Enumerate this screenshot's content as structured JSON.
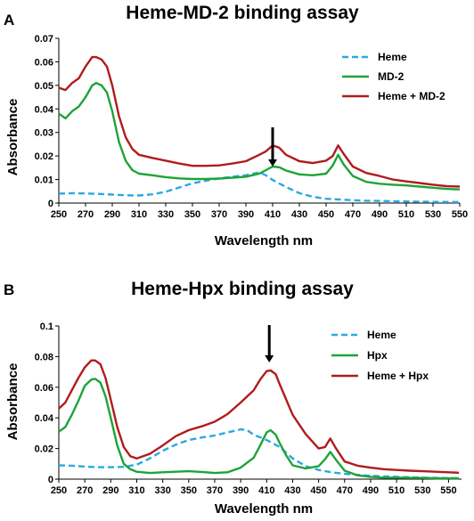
{
  "chart_data": [
    {
      "type": "line",
      "panel": "A",
      "title": "Heme-MD-2 binding assay",
      "xlabel": "Wavelength nm",
      "ylabel": "Absorbance",
      "xlim": [
        250,
        550
      ],
      "ylim": [
        0,
        0.07
      ],
      "xticks": [
        "250",
        "270",
        "290",
        "310",
        "330",
        "350",
        "370",
        "390",
        "410",
        "430",
        "450",
        "470",
        "490",
        "510",
        "530",
        "550"
      ],
      "yticks": [
        "0",
        "0.01",
        "0.02",
        "0.03",
        "0.04",
        "0.05",
        "0.06",
        "0.07"
      ],
      "legend_position": "top-right",
      "annotation": "downward arrow at 410 nm",
      "arrow_x": 410,
      "series": [
        {
          "name": "Heme",
          "color": "#2aa9e0",
          "dash": true,
          "points": [
            [
              250,
              0.004
            ],
            [
              260,
              0.0042
            ],
            [
              270,
              0.0041
            ],
            [
              280,
              0.0039
            ],
            [
              290,
              0.0036
            ],
            [
              300,
              0.0033
            ],
            [
              310,
              0.0032
            ],
            [
              320,
              0.0037
            ],
            [
              330,
              0.0048
            ],
            [
              340,
              0.0066
            ],
            [
              350,
              0.0084
            ],
            [
              360,
              0.0095
            ],
            [
              370,
              0.0105
            ],
            [
              380,
              0.0112
            ],
            [
              390,
              0.0118
            ],
            [
              395,
              0.0125
            ],
            [
              400,
              0.013
            ],
            [
              405,
              0.0118
            ],
            [
              410,
              0.0098
            ],
            [
              420,
              0.0068
            ],
            [
              430,
              0.0042
            ],
            [
              440,
              0.0027
            ],
            [
              450,
              0.0018
            ],
            [
              460,
              0.0015
            ],
            [
              470,
              0.0012
            ],
            [
              480,
              0.001
            ],
            [
              490,
              0.0009
            ],
            [
              500,
              0.0008
            ],
            [
              510,
              0.0007
            ],
            [
              520,
              0.0006
            ],
            [
              530,
              0.0005
            ],
            [
              540,
              0.0005
            ],
            [
              550,
              0.0004
            ]
          ]
        },
        {
          "name": "MD-2",
          "color": "#1ea33a",
          "dash": false,
          "points": [
            [
              250,
              0.038
            ],
            [
              255,
              0.036
            ],
            [
              260,
              0.039
            ],
            [
              265,
              0.041
            ],
            [
              270,
              0.045
            ],
            [
              275,
              0.05
            ],
            [
              278,
              0.051
            ],
            [
              282,
              0.05
            ],
            [
              286,
              0.047
            ],
            [
              290,
              0.039
            ],
            [
              295,
              0.026
            ],
            [
              300,
              0.018
            ],
            [
              305,
              0.014
            ],
            [
              310,
              0.0125
            ],
            [
              320,
              0.0118
            ],
            [
              330,
              0.011
            ],
            [
              340,
              0.0105
            ],
            [
              350,
              0.0102
            ],
            [
              360,
              0.0102
            ],
            [
              370,
              0.0104
            ],
            [
              380,
              0.0108
            ],
            [
              390,
              0.0112
            ],
            [
              400,
              0.0125
            ],
            [
              405,
              0.014
            ],
            [
              410,
              0.0155
            ],
            [
              415,
              0.0152
            ],
            [
              420,
              0.0138
            ],
            [
              430,
              0.0122
            ],
            [
              440,
              0.0118
            ],
            [
              450,
              0.0125
            ],
            [
              455,
              0.016
            ],
            [
              459,
              0.0205
            ],
            [
              463,
              0.0165
            ],
            [
              470,
              0.0115
            ],
            [
              480,
              0.009
            ],
            [
              490,
              0.0082
            ],
            [
              500,
              0.0078
            ],
            [
              510,
              0.0075
            ],
            [
              520,
              0.007
            ],
            [
              530,
              0.0065
            ],
            [
              540,
              0.006
            ],
            [
              550,
              0.0058
            ]
          ]
        },
        {
          "name": "Heme + MD-2",
          "color": "#b01c1c",
          "dash": false,
          "points": [
            [
              250,
              0.049
            ],
            [
              255,
              0.048
            ],
            [
              260,
              0.051
            ],
            [
              265,
              0.053
            ],
            [
              270,
              0.058
            ],
            [
              275,
              0.062
            ],
            [
              278,
              0.062
            ],
            [
              282,
              0.061
            ],
            [
              286,
              0.058
            ],
            [
              290,
              0.05
            ],
            [
              295,
              0.037
            ],
            [
              300,
              0.028
            ],
            [
              305,
              0.023
            ],
            [
              310,
              0.0205
            ],
            [
              320,
              0.0192
            ],
            [
              330,
              0.018
            ],
            [
              340,
              0.0168
            ],
            [
              350,
              0.0158
            ],
            [
              360,
              0.0158
            ],
            [
              370,
              0.016
            ],
            [
              380,
              0.0168
            ],
            [
              390,
              0.0178
            ],
            [
              400,
              0.0205
            ],
            [
              405,
              0.022
            ],
            [
              410,
              0.0245
            ],
            [
              415,
              0.0235
            ],
            [
              420,
              0.0205
            ],
            [
              430,
              0.0178
            ],
            [
              440,
              0.017
            ],
            [
              450,
              0.018
            ],
            [
              455,
              0.02
            ],
            [
              459,
              0.0245
            ],
            [
              463,
              0.021
            ],
            [
              470,
              0.0155
            ],
            [
              480,
              0.0128
            ],
            [
              490,
              0.0115
            ],
            [
              500,
              0.01
            ],
            [
              510,
              0.0092
            ],
            [
              520,
              0.0085
            ],
            [
              530,
              0.0078
            ],
            [
              540,
              0.0072
            ],
            [
              550,
              0.007
            ]
          ]
        }
      ]
    },
    {
      "type": "line",
      "panel": "B",
      "title": "Heme-Hpx binding assay",
      "xlabel": "Wavelength nm",
      "ylabel": "Absorbance",
      "xlim": [
        250,
        560
      ],
      "ylim": [
        0,
        0.1
      ],
      "xticks": [
        "250",
        "270",
        "290",
        "310",
        "330",
        "350",
        "370",
        "390",
        "410",
        "430",
        "450",
        "470",
        "490",
        "510",
        "530",
        "550"
      ],
      "yticks": [
        "0",
        "0.02",
        "0.04",
        "0.06",
        "0.08",
        "0.1"
      ],
      "legend_position": "top-right",
      "annotation": "downward arrow at 412 nm",
      "arrow_x": 412,
      "series": [
        {
          "name": "Heme",
          "color": "#2aa9e0",
          "dash": true,
          "points": [
            [
              250,
              0.009
            ],
            [
              260,
              0.0088
            ],
            [
              270,
              0.0082
            ],
            [
              280,
              0.0078
            ],
            [
              290,
              0.0078
            ],
            [
              300,
              0.008
            ],
            [
              310,
              0.0095
            ],
            [
              320,
              0.0135
            ],
            [
              330,
              0.0185
            ],
            [
              340,
              0.0225
            ],
            [
              350,
              0.0255
            ],
            [
              360,
              0.0272
            ],
            [
              370,
              0.0285
            ],
            [
              380,
              0.0305
            ],
            [
              390,
              0.0325
            ],
            [
              395,
              0.032
            ],
            [
              400,
              0.029
            ],
            [
              410,
              0.0255
            ],
            [
              420,
              0.021
            ],
            [
              430,
              0.0135
            ],
            [
              440,
              0.0085
            ],
            [
              450,
              0.006
            ],
            [
              460,
              0.0045
            ],
            [
              470,
              0.0035
            ],
            [
              480,
              0.0028
            ],
            [
              490,
              0.0022
            ],
            [
              500,
              0.0018
            ],
            [
              510,
              0.0015
            ],
            [
              520,
              0.0012
            ],
            [
              530,
              0.001
            ],
            [
              540,
              0.0008
            ],
            [
              550,
              0.0007
            ],
            [
              558,
              0.0006
            ]
          ]
        },
        {
          "name": "Hpx",
          "color": "#1ea33a",
          "dash": false,
          "points": [
            [
              250,
              0.031
            ],
            [
              255,
              0.034
            ],
            [
              260,
              0.042
            ],
            [
              265,
              0.051
            ],
            [
              270,
              0.061
            ],
            [
              275,
              0.065
            ],
            [
              278,
              0.0655
            ],
            [
              282,
              0.063
            ],
            [
              286,
              0.054
            ],
            [
              290,
              0.04
            ],
            [
              295,
              0.022
            ],
            [
              300,
              0.01
            ],
            [
              305,
              0.0065
            ],
            [
              310,
              0.0048
            ],
            [
              320,
              0.004
            ],
            [
              330,
              0.0045
            ],
            [
              340,
              0.0048
            ],
            [
              350,
              0.0052
            ],
            [
              360,
              0.0047
            ],
            [
              370,
              0.004
            ],
            [
              380,
              0.0045
            ],
            [
              390,
              0.0075
            ],
            [
              400,
              0.014
            ],
            [
              405,
              0.022
            ],
            [
              410,
              0.0305
            ],
            [
              413,
              0.032
            ],
            [
              417,
              0.029
            ],
            [
              420,
              0.0235
            ],
            [
              425,
              0.0155
            ],
            [
              430,
              0.009
            ],
            [
              440,
              0.007
            ],
            [
              450,
              0.0085
            ],
            [
              455,
              0.013
            ],
            [
              459,
              0.0178
            ],
            [
              463,
              0.013
            ],
            [
              470,
              0.0055
            ],
            [
              480,
              0.0025
            ],
            [
              490,
              0.0015
            ],
            [
              500,
              0.001
            ],
            [
              510,
              0.001
            ],
            [
              520,
              0.0008
            ],
            [
              530,
              0.0008
            ],
            [
              540,
              0.0006
            ],
            [
              550,
              0.0005
            ],
            [
              558,
              0.0005
            ]
          ]
        },
        {
          "name": "Heme + Hpx",
          "color": "#b01c1c",
          "dash": false,
          "points": [
            [
              250,
              0.046
            ],
            [
              255,
              0.05
            ],
            [
              260,
              0.058
            ],
            [
              265,
              0.066
            ],
            [
              270,
              0.073
            ],
            [
              275,
              0.0775
            ],
            [
              278,
              0.0775
            ],
            [
              282,
              0.075
            ],
            [
              286,
              0.066
            ],
            [
              290,
              0.052
            ],
            [
              295,
              0.034
            ],
            [
              300,
              0.021
            ],
            [
              305,
              0.015
            ],
            [
              310,
              0.0135
            ],
            [
              320,
              0.0165
            ],
            [
              330,
              0.022
            ],
            [
              340,
              0.028
            ],
            [
              350,
              0.032
            ],
            [
              360,
              0.0345
            ],
            [
              370,
              0.0375
            ],
            [
              380,
              0.0425
            ],
            [
              390,
              0.05
            ],
            [
              400,
              0.058
            ],
            [
              405,
              0.065
            ],
            [
              410,
              0.0705
            ],
            [
              413,
              0.071
            ],
            [
              417,
              0.0685
            ],
            [
              420,
              0.062
            ],
            [
              425,
              0.052
            ],
            [
              430,
              0.042
            ],
            [
              440,
              0.0295
            ],
            [
              450,
              0.02
            ],
            [
              455,
              0.021
            ],
            [
              459,
              0.0265
            ],
            [
              463,
              0.0205
            ],
            [
              470,
              0.0115
            ],
            [
              480,
              0.0088
            ],
            [
              490,
              0.0075
            ],
            [
              500,
              0.0065
            ],
            [
              510,
              0.006
            ],
            [
              520,
              0.0055
            ],
            [
              530,
              0.0052
            ],
            [
              540,
              0.0048
            ],
            [
              550,
              0.0045
            ],
            [
              558,
              0.0042
            ]
          ]
        }
      ]
    }
  ]
}
